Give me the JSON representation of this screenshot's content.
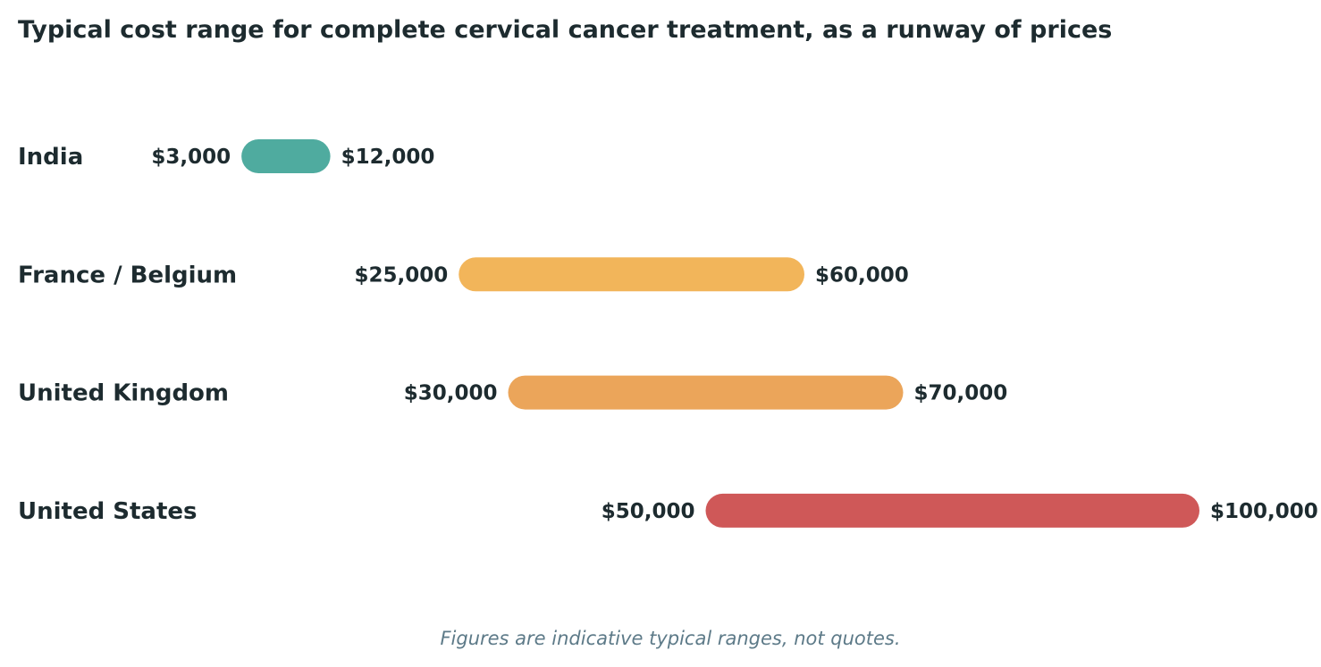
{
  "chart_data": {
    "type": "range-bar",
    "title": "Typical cost range for complete cervical cancer treatment, as a runway of prices",
    "footnote": "Figures are indicative typical ranges, not quotes.",
    "currency": "USD",
    "x_range": [
      0,
      100000
    ],
    "grid": false,
    "legend": "none",
    "categories": [
      "India",
      "France / Belgium",
      "United Kingdom",
      "United States"
    ],
    "rows": [
      {
        "category": "India",
        "min": 3000,
        "max": 12000,
        "min_label": "$3,000",
        "max_label": "$12,000",
        "color": "#4fab9f"
      },
      {
        "category": "France / Belgium",
        "min": 25000,
        "max": 60000,
        "min_label": "$25,000",
        "max_label": "$60,000",
        "color": "#f2b55a"
      },
      {
        "category": "United Kingdom",
        "min": 30000,
        "max": 70000,
        "min_label": "$30,000",
        "max_label": "$70,000",
        "color": "#eba55a"
      },
      {
        "category": "United States",
        "min": 50000,
        "max": 100000,
        "min_label": "$50,000",
        "max_label": "$100,000",
        "color": "#cf5858"
      }
    ]
  },
  "colors": {
    "text": "#1d2b2f",
    "footnote": "#5d7a88",
    "background": "#ffffff"
  }
}
